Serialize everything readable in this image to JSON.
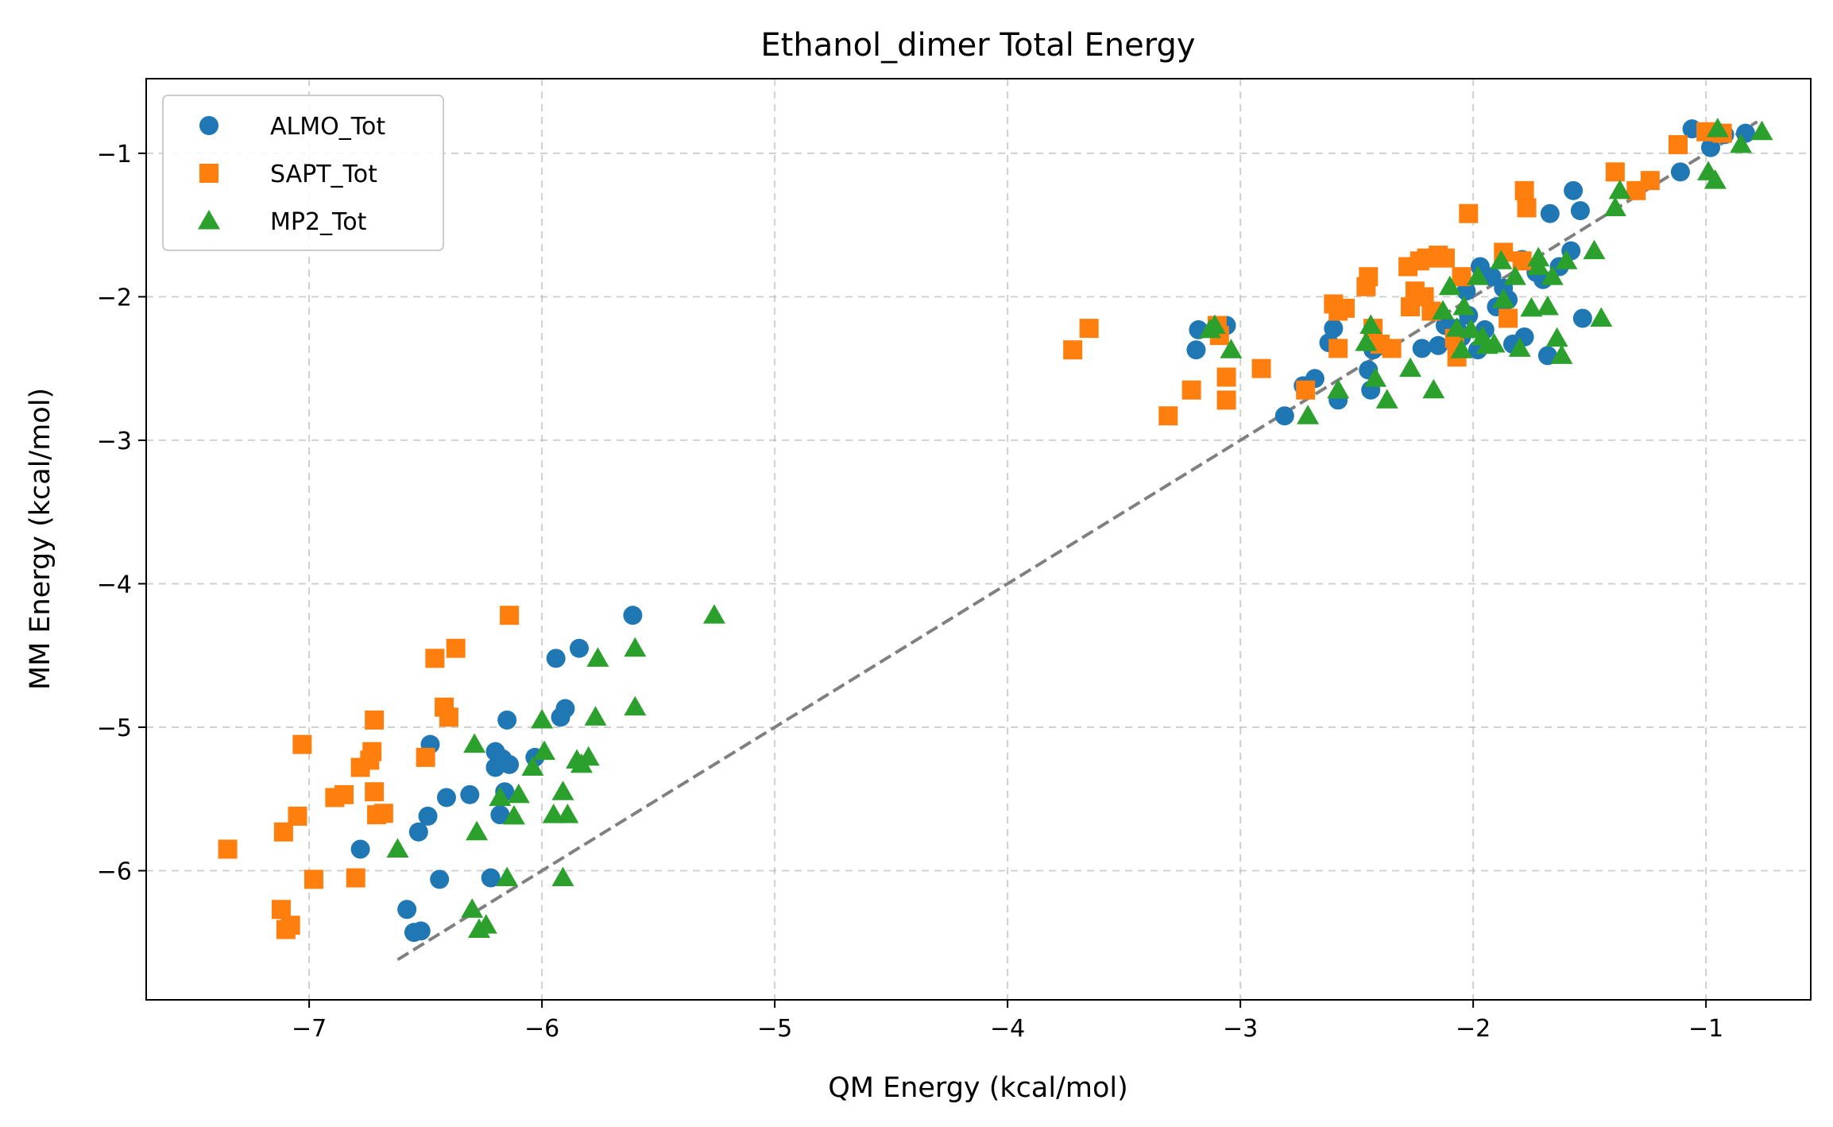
{
  "chart_data": {
    "type": "scatter",
    "title": "Ethanol_dimer Total Energy",
    "xlabel": "QM Energy (kcal/mol)",
    "ylabel": "MM Energy (kcal/mol)",
    "xlim": [
      -7.7,
      -0.55
    ],
    "ylim": [
      -6.9,
      -0.48
    ],
    "xticks": [
      -7,
      -6,
      -5,
      -4,
      -3,
      -2,
      -1
    ],
    "yticks": [
      -6,
      -5,
      -4,
      -3,
      -2,
      -1
    ],
    "xtick_labels": [
      "−7",
      "−6",
      "−5",
      "−4",
      "−3",
      "−2",
      "−1"
    ],
    "ytick_labels": [
      "−6",
      "−5",
      "−4",
      "−3",
      "−2",
      "−1"
    ],
    "grid": true,
    "legend_position": "top-left",
    "reference_line": {
      "x": [
        -6.62,
        -0.78
      ],
      "y": [
        -6.62,
        -0.78
      ],
      "style": "dashed",
      "color": "#808080"
    },
    "series": [
      {
        "name": "ALMO_Tot",
        "marker": "circle",
        "color": "#1f77b4",
        "points": [
          [
            -6.78,
            -5.85
          ],
          [
            -6.58,
            -6.27
          ],
          [
            -6.55,
            -6.43
          ],
          [
            -6.52,
            -6.42
          ],
          [
            -6.53,
            -5.73
          ],
          [
            -6.49,
            -5.62
          ],
          [
            -6.48,
            -5.12
          ],
          [
            -6.44,
            -6.06
          ],
          [
            -6.41,
            -5.49
          ],
          [
            -6.31,
            -5.47
          ],
          [
            -6.22,
            -6.05
          ],
          [
            -6.2,
            -5.17
          ],
          [
            -6.2,
            -5.28
          ],
          [
            -6.18,
            -5.61
          ],
          [
            -6.17,
            -5.22
          ],
          [
            -6.16,
            -5.45
          ],
          [
            -6.15,
            -4.95
          ],
          [
            -6.14,
            -5.26
          ],
          [
            -6.03,
            -5.21
          ],
          [
            -5.94,
            -4.52
          ],
          [
            -5.92,
            -4.93
          ],
          [
            -5.9,
            -4.87
          ],
          [
            -5.84,
            -4.45
          ],
          [
            -5.61,
            -4.22
          ],
          [
            -3.18,
            -2.23
          ],
          [
            -3.19,
            -2.37
          ],
          [
            -3.06,
            -2.2
          ],
          [
            -2.81,
            -2.83
          ],
          [
            -2.73,
            -2.62
          ],
          [
            -2.68,
            -2.57
          ],
          [
            -2.62,
            -2.32
          ],
          [
            -2.6,
            -2.22
          ],
          [
            -2.58,
            -2.72
          ],
          [
            -2.45,
            -2.51
          ],
          [
            -2.44,
            -2.65
          ],
          [
            -2.43,
            -2.37
          ],
          [
            -2.22,
            -2.36
          ],
          [
            -2.15,
            -2.34
          ],
          [
            -2.12,
            -2.2
          ],
          [
            -2.07,
            -2.22
          ],
          [
            -2.05,
            -2.28
          ],
          [
            -2.03,
            -1.96
          ],
          [
            -2.02,
            -2.13
          ],
          [
            -1.98,
            -2.37
          ],
          [
            -1.97,
            -1.79
          ],
          [
            -1.95,
            -2.23
          ],
          [
            -1.92,
            -1.86
          ],
          [
            -1.9,
            -2.07
          ],
          [
            -1.87,
            -1.94
          ],
          [
            -1.85,
            -2.02
          ],
          [
            -1.83,
            -2.33
          ],
          [
            -1.79,
            -1.74
          ],
          [
            -1.78,
            -2.28
          ],
          [
            -1.73,
            -1.83
          ],
          [
            -1.7,
            -1.88
          ],
          [
            -1.68,
            -2.41
          ],
          [
            -1.67,
            -1.42
          ],
          [
            -1.63,
            -1.79
          ],
          [
            -1.58,
            -1.68
          ],
          [
            -1.57,
            -1.26
          ],
          [
            -1.54,
            -1.4
          ],
          [
            -1.53,
            -2.15
          ],
          [
            -1.11,
            -1.13
          ],
          [
            -1.06,
            -0.83
          ],
          [
            -0.98,
            -0.96
          ],
          [
            -0.92,
            -0.87
          ],
          [
            -0.83,
            -0.86
          ]
        ]
      },
      {
        "name": "SAPT_Tot",
        "marker": "square",
        "color": "#ff7f0e",
        "points": [
          [
            -7.35,
            -5.85
          ],
          [
            -7.12,
            -6.27
          ],
          [
            -7.11,
            -5.73
          ],
          [
            -7.1,
            -6.41
          ],
          [
            -7.08,
            -6.38
          ],
          [
            -7.05,
            -5.62
          ],
          [
            -7.03,
            -5.12
          ],
          [
            -6.98,
            -6.06
          ],
          [
            -6.89,
            -5.49
          ],
          [
            -6.85,
            -5.47
          ],
          [
            -6.8,
            -6.05
          ],
          [
            -6.78,
            -5.28
          ],
          [
            -6.74,
            -5.23
          ],
          [
            -6.73,
            -5.17
          ],
          [
            -6.72,
            -4.95
          ],
          [
            -6.72,
            -5.45
          ],
          [
            -6.71,
            -5.61
          ],
          [
            -6.68,
            -5.6
          ],
          [
            -6.5,
            -5.21
          ],
          [
            -6.46,
            -4.52
          ],
          [
            -6.42,
            -4.86
          ],
          [
            -6.4,
            -4.93
          ],
          [
            -6.37,
            -4.45
          ],
          [
            -6.14,
            -4.22
          ],
          [
            -3.72,
            -2.37
          ],
          [
            -3.65,
            -2.22
          ],
          [
            -3.31,
            -2.83
          ],
          [
            -3.21,
            -2.65
          ],
          [
            -3.1,
            -2.2
          ],
          [
            -3.09,
            -2.27
          ],
          [
            -3.06,
            -2.72
          ],
          [
            -3.06,
            -2.56
          ],
          [
            -2.91,
            -2.5
          ],
          [
            -2.72,
            -2.65
          ],
          [
            -2.6,
            -2.05
          ],
          [
            -2.58,
            -2.1
          ],
          [
            -2.58,
            -2.36
          ],
          [
            -2.55,
            -2.08
          ],
          [
            -2.46,
            -1.93
          ],
          [
            -2.45,
            -1.86
          ],
          [
            -2.43,
            -2.22
          ],
          [
            -2.4,
            -2.33
          ],
          [
            -2.35,
            -2.36
          ],
          [
            -2.28,
            -1.79
          ],
          [
            -2.27,
            -2.07
          ],
          [
            -2.25,
            -1.96
          ],
          [
            -2.23,
            -1.75
          ],
          [
            -2.21,
            -2.0
          ],
          [
            -2.2,
            -1.73
          ],
          [
            -2.18,
            -2.1
          ],
          [
            -2.15,
            -1.71
          ],
          [
            -2.12,
            -1.73
          ],
          [
            -2.08,
            -2.29
          ],
          [
            -2.07,
            -2.42
          ],
          [
            -2.05,
            -1.86
          ],
          [
            -2.02,
            -1.42
          ],
          [
            -1.87,
            -1.69
          ],
          [
            -1.85,
            -2.15
          ],
          [
            -1.79,
            -1.75
          ],
          [
            -1.77,
            -1.38
          ],
          [
            -1.78,
            -1.26
          ],
          [
            -1.39,
            -1.13
          ],
          [
            -1.3,
            -1.26
          ],
          [
            -1.24,
            -1.19
          ],
          [
            -1.12,
            -0.94
          ],
          [
            -1.0,
            -0.85
          ],
          [
            -0.93,
            -0.86
          ]
        ]
      },
      {
        "name": "MP2_Tot",
        "marker": "triangle",
        "color": "#2ca02c",
        "points": [
          [
            -6.62,
            -5.85
          ],
          [
            -6.3,
            -6.27
          ],
          [
            -6.29,
            -5.12
          ],
          [
            -6.28,
            -5.73
          ],
          [
            -6.27,
            -6.41
          ],
          [
            -6.24,
            -6.38
          ],
          [
            -6.18,
            -5.49
          ],
          [
            -6.15,
            -6.05
          ],
          [
            -6.12,
            -5.62
          ],
          [
            -6.1,
            -5.47
          ],
          [
            -6.04,
            -5.28
          ],
          [
            -6.0,
            -4.95
          ],
          [
            -5.99,
            -5.17
          ],
          [
            -5.95,
            -5.61
          ],
          [
            -5.91,
            -5.45
          ],
          [
            -5.91,
            -6.05
          ],
          [
            -5.89,
            -5.61
          ],
          [
            -5.85,
            -5.23
          ],
          [
            -5.83,
            -5.26
          ],
          [
            -5.8,
            -5.21
          ],
          [
            -5.77,
            -4.93
          ],
          [
            -5.76,
            -4.52
          ],
          [
            -5.6,
            -4.45
          ],
          [
            -5.6,
            -4.86
          ],
          [
            -5.26,
            -4.22
          ],
          [
            -3.13,
            -2.23
          ],
          [
            -3.11,
            -2.2
          ],
          [
            -3.04,
            -2.37
          ],
          [
            -2.71,
            -2.83
          ],
          [
            -2.58,
            -2.65
          ],
          [
            -2.46,
            -2.32
          ],
          [
            -2.44,
            -2.2
          ],
          [
            -2.42,
            -2.57
          ],
          [
            -2.37,
            -2.72
          ],
          [
            -2.27,
            -2.5
          ],
          [
            -2.17,
            -2.65
          ],
          [
            -2.13,
            -2.1
          ],
          [
            -2.1,
            -1.93
          ],
          [
            -2.07,
            -2.22
          ],
          [
            -2.05,
            -2.37
          ],
          [
            -2.04,
            -2.07
          ],
          [
            -2.01,
            -2.23
          ],
          [
            -1.98,
            -1.86
          ],
          [
            -1.96,
            -2.28
          ],
          [
            -1.94,
            -2.34
          ],
          [
            -1.91,
            -2.33
          ],
          [
            -1.88,
            -1.75
          ],
          [
            -1.87,
            -2.02
          ],
          [
            -1.82,
            -1.86
          ],
          [
            -1.8,
            -2.36
          ],
          [
            -1.75,
            -2.08
          ],
          [
            -1.72,
            -1.73
          ],
          [
            -1.72,
            -1.79
          ],
          [
            -1.68,
            -2.07
          ],
          [
            -1.66,
            -1.86
          ],
          [
            -1.64,
            -2.29
          ],
          [
            -1.62,
            -2.41
          ],
          [
            -1.6,
            -1.75
          ],
          [
            -1.48,
            -1.68
          ],
          [
            -1.45,
            -2.15
          ],
          [
            -1.39,
            -1.38
          ],
          [
            -1.37,
            -1.26
          ],
          [
            -0.99,
            -1.13
          ],
          [
            -0.96,
            -1.19
          ],
          [
            -0.95,
            -0.83
          ],
          [
            -0.85,
            -0.94
          ],
          [
            -0.76,
            -0.85
          ]
        ]
      }
    ]
  }
}
